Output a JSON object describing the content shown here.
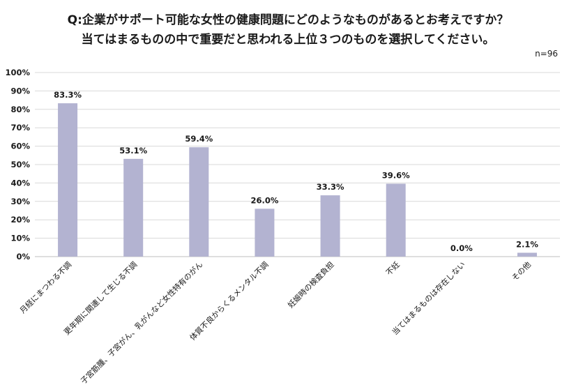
{
  "chart_data": {
    "type": "bar",
    "title_line1": "Q:企業がサポート可能な女性の健康問題にどのようなものがあるとお考えですか？",
    "title_line2": "当てはまるものの中で重要だと思われる上位３つのものを選択してください。",
    "note": "n=96",
    "categories": [
      "月経にまつわる不調",
      "更年期に関連して生じる不調",
      "子宮筋腫、子宮がん、乳がんなど女性特有のがん",
      "体質不良からくるメンタル不調",
      "妊娠時の検査負担",
      "不妊",
      "当てはまるものは存在しない",
      "その他"
    ],
    "values": [
      83.3,
      53.1,
      59.4,
      26.0,
      33.3,
      39.6,
      0.0,
      2.1
    ],
    "value_labels": [
      "83.3%",
      "53.1%",
      "59.4%",
      "26.0%",
      "33.3%",
      "39.6%",
      "0.0%",
      "2.1%"
    ],
    "ylim": [
      0,
      100
    ],
    "yticks": [
      "0%",
      "10%",
      "20%",
      "30%",
      "40%",
      "50%",
      "60%",
      "70%",
      "80%",
      "90%",
      "100%"
    ],
    "grid": true,
    "bar_color": "#b3b3d1",
    "grid_color": "#d9d9d9",
    "axis_color": "#bfbfbf"
  }
}
